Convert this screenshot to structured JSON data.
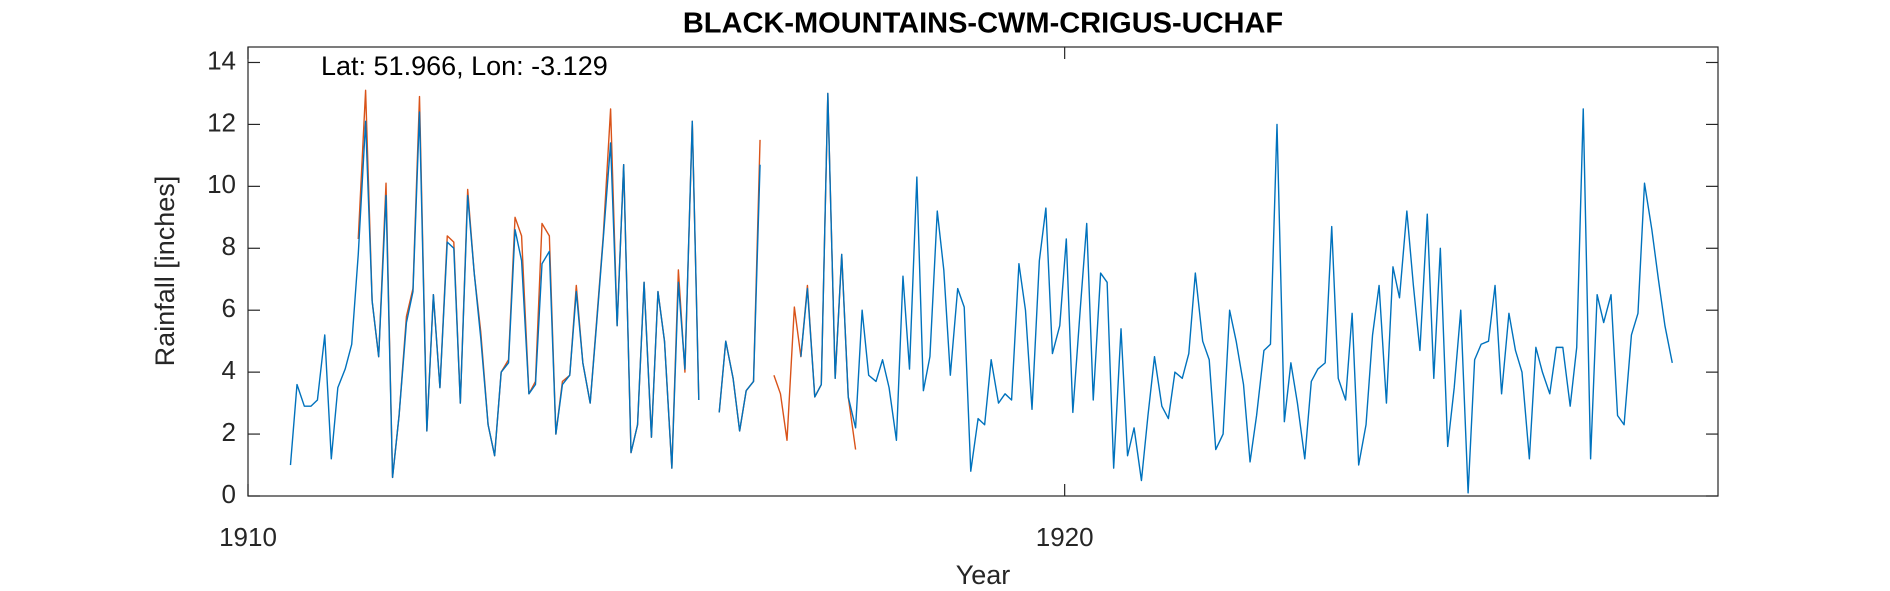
{
  "chart_data": {
    "type": "line",
    "title": "BLACK-MOUNTAINS-CWM-CRIGUS-UCHAF",
    "annotation": "Lat: 51.966, Lon: -3.129",
    "xlabel": "Year",
    "ylabel": "Rainfall [inches]",
    "xlim": [
      1910,
      1928
    ],
    "xticks": [
      1910,
      1920
    ],
    "ylim": [
      0,
      14.5
    ],
    "yticks": [
      0,
      2,
      4,
      6,
      8,
      10,
      12,
      14
    ],
    "x": [
      1910.52,
      1910.6,
      1910.69,
      1910.77,
      1910.85,
      1910.94,
      1911.02,
      1911.1,
      1911.19,
      1911.27,
      1911.35,
      1911.44,
      1911.52,
      1911.6,
      1911.69,
      1911.77,
      1911.85,
      1911.94,
      1912.02,
      1912.1,
      1912.19,
      1912.27,
      1912.35,
      1912.44,
      1912.52,
      1912.6,
      1912.69,
      1912.77,
      1912.85,
      1912.94,
      1913.02,
      1913.1,
      1913.19,
      1913.27,
      1913.35,
      1913.44,
      1913.52,
      1913.6,
      1913.69,
      1913.77,
      1913.85,
      1913.94,
      1914.02,
      1914.1,
      1914.19,
      1914.27,
      1914.35,
      1914.44,
      1914.52,
      1914.6,
      1914.69,
      1914.77,
      1914.85,
      1914.94,
      1915.02,
      1915.1,
      1915.19,
      1915.27,
      1915.35,
      1915.44,
      1915.52,
      1915.6,
      1915.69,
      1915.77,
      1915.85,
      1915.94,
      1916.02,
      1916.1,
      1916.19,
      1916.27,
      1916.35,
      1916.44,
      1916.52,
      1916.6,
      1916.69,
      1916.77,
      1916.85,
      1916.94,
      1917.02,
      1917.1,
      1917.19,
      1917.27,
      1917.35,
      1917.44,
      1917.52,
      1917.6,
      1917.69,
      1917.77,
      1917.85,
      1917.94,
      1918.02,
      1918.1,
      1918.19,
      1918.27,
      1918.35,
      1918.44,
      1918.52,
      1918.6,
      1918.69,
      1918.77,
      1918.85,
      1918.94,
      1919.02,
      1919.1,
      1919.19,
      1919.27,
      1919.35,
      1919.44,
      1919.52,
      1919.6,
      1919.69,
      1919.77,
      1919.85,
      1919.94,
      1920.02,
      1920.1,
      1920.19,
      1920.27,
      1920.35,
      1920.44,
      1920.52,
      1920.6,
      1920.69,
      1920.77,
      1920.85,
      1920.94,
      1921.02,
      1921.1,
      1921.19,
      1921.27,
      1921.35,
      1921.44,
      1921.52,
      1921.6,
      1921.69,
      1921.77,
      1921.85,
      1921.94,
      1922.02,
      1922.1,
      1922.19,
      1922.27,
      1922.35,
      1922.44,
      1922.52,
      1922.6,
      1922.69,
      1922.77,
      1922.85,
      1922.94,
      1923.02,
      1923.1,
      1923.19,
      1923.27,
      1923.35,
      1923.44,
      1923.52,
      1923.6,
      1923.69,
      1923.77,
      1923.85,
      1923.94,
      1924.02,
      1924.1,
      1924.19,
      1924.27,
      1924.35,
      1924.44,
      1924.52,
      1924.6,
      1924.69,
      1924.77,
      1924.85,
      1924.94,
      1925.02,
      1925.1,
      1925.19,
      1925.27,
      1925.35,
      1925.44,
      1925.52,
      1925.6,
      1925.69,
      1925.77,
      1925.85,
      1925.94,
      1926.02,
      1926.1,
      1926.19,
      1926.27,
      1926.35,
      1926.44,
      1926.52,
      1926.6,
      1926.69,
      1926.77,
      1926.85,
      1926.94,
      1927.02,
      1927.1,
      1927.19,
      1927.27,
      1927.35,
      1927.44
    ],
    "series": [
      {
        "color": "#d95319",
        "values": [
          null,
          null,
          null,
          null,
          null,
          null,
          null,
          null,
          null,
          null,
          8.3,
          13.1,
          6.3,
          4.5,
          10.1,
          0.6,
          2.6,
          5.8,
          6.7,
          12.9,
          2.1,
          6.5,
          3.5,
          8.4,
          8.2,
          3.0,
          9.9,
          7.2,
          5.3,
          2.3,
          1.3,
          4.0,
          4.4,
          9.0,
          8.4,
          3.3,
          3.7,
          8.8,
          8.4,
          2.0,
          3.7,
          3.9,
          6.8,
          4.3,
          3.0,
          5.7,
          8.4,
          12.5,
          5.5,
          10.7,
          1.4,
          2.3,
          6.9,
          1.9,
          6.6,
          5.0,
          0.9,
          7.3,
          4.0,
          12.1,
          3.1,
          null,
          null,
          2.7,
          5.0,
          3.8,
          2.1,
          3.4,
          3.7,
          11.5,
          null,
          3.9,
          3.3,
          1.8,
          6.1,
          4.5,
          6.8,
          3.2,
          3.6,
          13.0,
          3.8,
          7.8,
          3.2,
          1.5,
          null,
          null,
          null,
          null,
          null,
          null,
          null,
          null,
          null,
          null,
          null,
          null,
          null,
          null,
          null,
          null,
          null,
          null,
          null,
          null,
          null,
          null,
          null,
          null,
          null,
          null,
          null,
          null,
          null,
          null,
          null,
          null,
          null,
          null,
          null,
          null,
          null,
          null,
          null,
          null,
          null,
          null,
          null,
          null,
          null,
          null,
          null,
          null,
          null,
          null,
          null,
          null,
          null,
          null,
          null,
          null,
          null,
          null,
          null,
          null,
          null,
          null,
          null,
          null,
          null,
          null,
          null,
          null,
          null,
          null,
          null,
          null,
          null,
          null,
          null,
          null,
          null,
          null,
          null,
          null,
          null,
          null,
          null,
          null,
          null,
          null,
          null,
          null,
          null,
          null,
          null,
          null,
          null,
          null,
          null,
          null,
          null,
          null,
          null,
          null,
          null,
          null,
          null,
          null,
          null,
          null,
          null,
          null,
          null,
          null,
          null,
          null,
          null,
          null,
          null,
          null,
          null,
          null,
          null,
          null
        ]
      },
      {
        "color": "#0072bd",
        "values": [
          1.0,
          3.6,
          2.9,
          2.9,
          3.1,
          5.2,
          1.2,
          3.5,
          4.1,
          4.9,
          7.8,
          12.1,
          6.3,
          4.5,
          9.7,
          0.6,
          2.6,
          5.6,
          6.6,
          12.4,
          2.1,
          6.5,
          3.5,
          8.2,
          8.0,
          3.0,
          9.7,
          7.2,
          5.1,
          2.3,
          1.3,
          4.0,
          4.3,
          8.6,
          7.6,
          3.3,
          3.6,
          7.5,
          7.9,
          2.0,
          3.6,
          3.9,
          6.6,
          4.3,
          3.0,
          5.6,
          8.3,
          11.4,
          5.5,
          10.7,
          1.4,
          2.3,
          6.9,
          1.9,
          6.6,
          5.0,
          0.9,
          6.9,
          4.1,
          12.1,
          3.1,
          null,
          null,
          2.7,
          5.0,
          3.8,
          2.1,
          3.4,
          3.7,
          10.7,
          null,
          null,
          null,
          null,
          null,
          4.5,
          6.7,
          3.2,
          3.6,
          13.0,
          3.8,
          7.8,
          3.2,
          2.2,
          6.0,
          3.9,
          3.7,
          4.4,
          3.5,
          1.8,
          7.1,
          4.1,
          10.3,
          3.4,
          4.5,
          9.2,
          7.3,
          3.9,
          6.7,
          6.1,
          0.8,
          2.5,
          2.3,
          4.4,
          3.0,
          3.3,
          3.1,
          7.5,
          6.0,
          2.8,
          7.6,
          9.3,
          4.6,
          5.5,
          8.3,
          2.7,
          6.0,
          8.8,
          3.1,
          7.2,
          6.9,
          0.9,
          5.4,
          1.3,
          2.2,
          0.5,
          2.6,
          4.5,
          2.9,
          2.5,
          4.0,
          3.8,
          4.6,
          7.2,
          5.0,
          4.4,
          1.5,
          2.0,
          6.0,
          5.0,
          3.6,
          1.1,
          2.6,
          4.7,
          4.9,
          12.0,
          2.4,
          4.3,
          3.0,
          1.2,
          3.7,
          4.1,
          4.3,
          8.7,
          3.8,
          3.1,
          5.9,
          1.0,
          2.3,
          5.2,
          6.8,
          3.0,
          7.4,
          6.4,
          9.2,
          6.8,
          4.7,
          9.1,
          3.8,
          8.0,
          1.6,
          3.5,
          6.0,
          0.1,
          4.4,
          4.9,
          5.0,
          6.8,
          3.3,
          5.9,
          4.7,
          4.0,
          1.2,
          4.8,
          4.0,
          3.3,
          4.8,
          4.8,
          2.9,
          4.8,
          12.5,
          1.2,
          6.5,
          5.6,
          6.5,
          2.6,
          2.3,
          5.2,
          5.9,
          10.1,
          8.6,
          7.0,
          5.5,
          4.3
        ]
      }
    ]
  }
}
